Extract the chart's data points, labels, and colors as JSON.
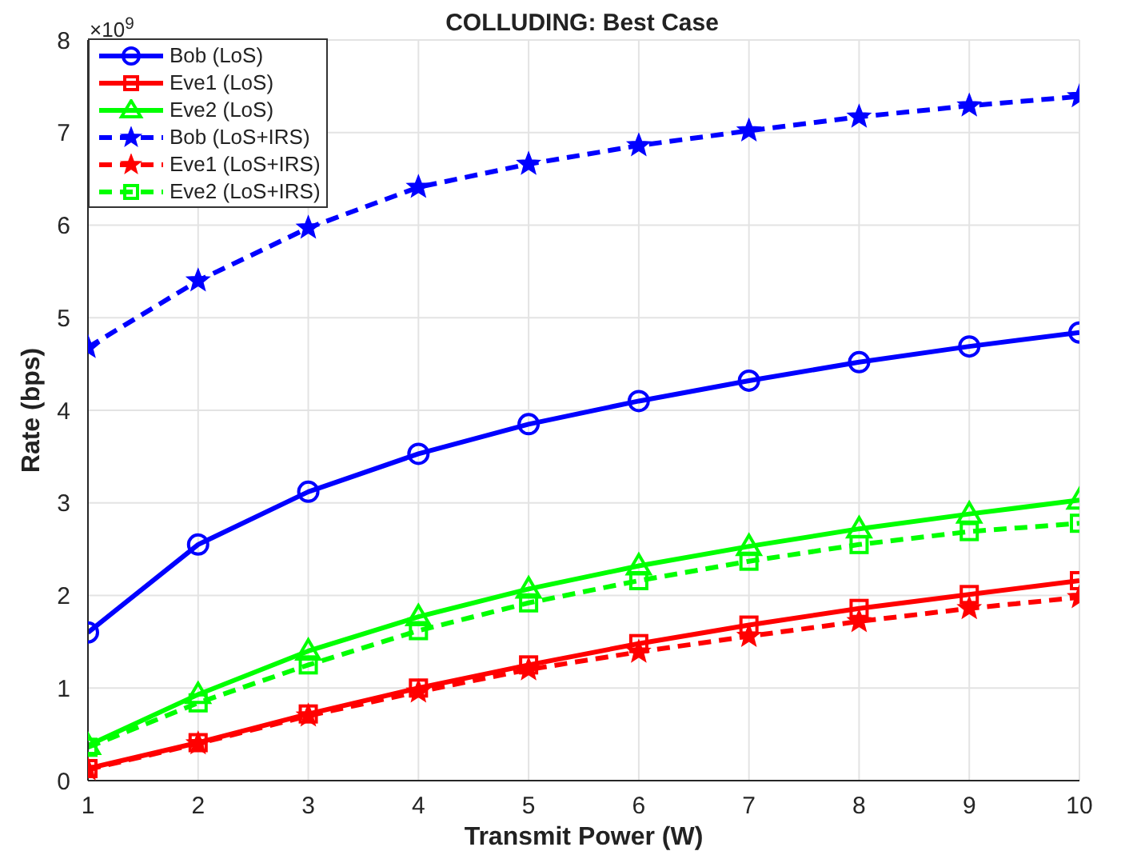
{
  "chart_data": {
    "type": "line",
    "title": "COLLUDING: Best Case",
    "xlabel": "Transmit Power (W)",
    "ylabel": "Rate (bps)",
    "annotations": [
      "×10$^{9}$"
    ],
    "x": [
      1,
      2,
      3,
      4,
      5,
      6,
      7,
      8,
      9,
      10
    ],
    "xlim": [
      1,
      10
    ],
    "xticks": [
      1,
      2,
      3,
      4,
      5,
      6,
      7,
      8,
      9,
      10
    ],
    "ylim": [
      0,
      8
    ],
    "yticks": [
      0,
      1,
      2,
      3,
      4,
      5,
      6,
      7,
      8
    ],
    "grid": true,
    "legend": "top left",
    "series": [
      {
        "name": "Bob (LoS)",
        "color": "#0000ff",
        "marker": "circle",
        "line_style": "solid",
        "values": [
          1.6,
          2.55,
          3.12,
          3.53,
          3.85,
          4.1,
          4.32,
          4.52,
          4.69,
          4.84
        ]
      },
      {
        "name": "Eve1 (LoS)",
        "color": "#ff0000",
        "marker": "square",
        "line_style": "solid",
        "values": [
          0.13,
          0.41,
          0.72,
          1.0,
          1.25,
          1.48,
          1.68,
          1.86,
          2.01,
          2.16
        ]
      },
      {
        "name": "Eve2 (LoS)",
        "color": "#00ff00",
        "marker": "triangle",
        "line_style": "solid",
        "values": [
          0.38,
          0.93,
          1.4,
          1.77,
          2.07,
          2.32,
          2.53,
          2.72,
          2.88,
          3.03
        ]
      },
      {
        "name": "Bob (LoS+IRS)",
        "color": "#0000ff",
        "marker": "star",
        "line_style": "dashed",
        "values": [
          4.68,
          5.4,
          5.97,
          6.41,
          6.66,
          6.86,
          7.02,
          7.17,
          7.29,
          7.39
        ]
      },
      {
        "name": "Eve1 (LoS+IRS)",
        "color": "#ff0000",
        "marker": "star",
        "line_style": "dashed",
        "values": [
          0.12,
          0.4,
          0.7,
          0.96,
          1.2,
          1.39,
          1.56,
          1.72,
          1.86,
          1.98
        ]
      },
      {
        "name": "Eve2 (LoS+IRS)",
        "color": "#00ff00",
        "marker": "square",
        "line_style": "dashed",
        "values": [
          0.36,
          0.84,
          1.25,
          1.62,
          1.92,
          2.16,
          2.37,
          2.55,
          2.69,
          2.78
        ]
      }
    ]
  }
}
